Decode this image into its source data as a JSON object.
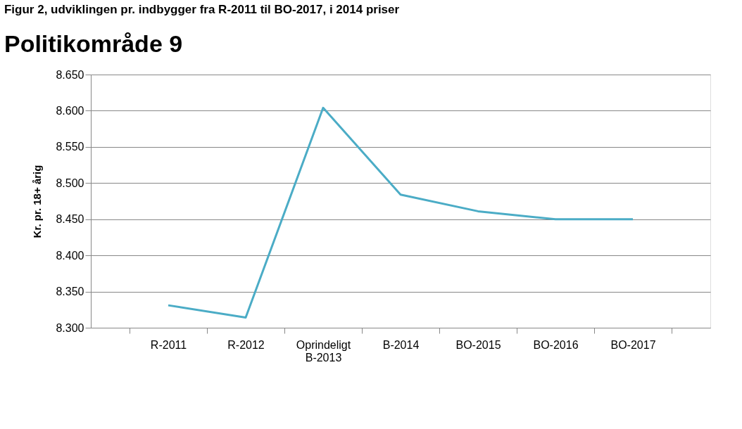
{
  "chart_data": {
    "type": "line",
    "title": "Figur 2, udviklingen pr. indbygger fra R-2011 til BO-2017, i 2014 priser",
    "subtitle": "Politikområde 9",
    "ylabel": "Kr. pr. 18+ årig",
    "categories": [
      "R-2011",
      "R-2012",
      "Oprindeligt B-2013",
      "B-2014",
      "BO-2015",
      "BO-2016",
      "BO-2017"
    ],
    "series": [
      {
        "color": "#4bacc6",
        "values": [
          8331,
          8314,
          8604,
          8484,
          8461,
          8450,
          8450
        ]
      }
    ],
    "ylim": [
      8300,
      8650
    ],
    "yticks": [
      {
        "value": 8300,
        "label": "8.300"
      },
      {
        "value": 8350,
        "label": "8.350"
      },
      {
        "value": 8400,
        "label": "8.400"
      },
      {
        "value": 8450,
        "label": "8.450"
      },
      {
        "value": 8500,
        "label": "8.500"
      },
      {
        "value": 8550,
        "label": "8.550"
      },
      {
        "value": 8600,
        "label": "8.600"
      },
      {
        "value": 8650,
        "label": "8.650"
      }
    ],
    "grid": "y",
    "legend": false,
    "marker": "none",
    "line_style": "solid"
  }
}
